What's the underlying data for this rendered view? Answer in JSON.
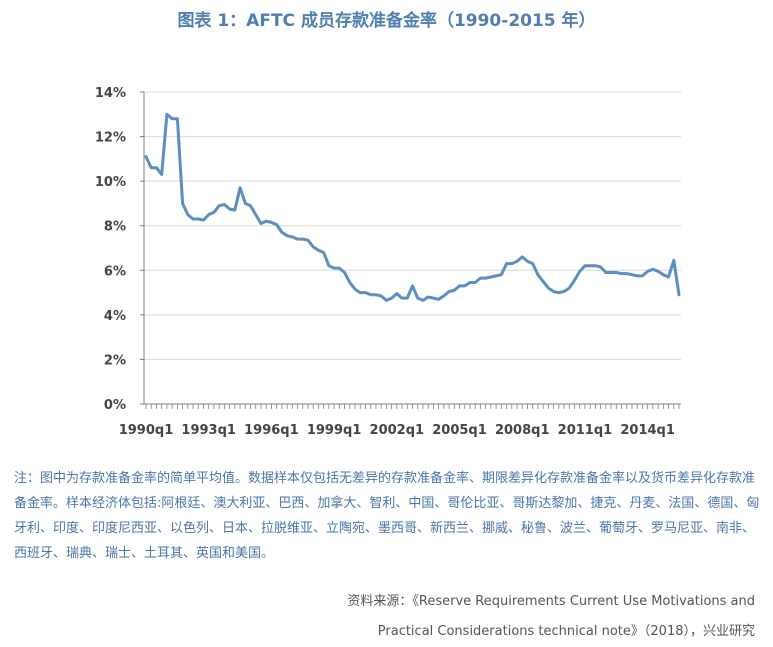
{
  "title": "图表 1：AFTC 成员存款准备金率（1990-2015 年）",
  "note": "注：图中为存款准备金率的简单平均值。数据样本仅包括无差异的存款准备金率、期限差异化存款准备金率以及货币差异化存款准备金率。样本经济体包括:阿根廷、澳大利亚、巴西、加拿大、智利、中国、哥伦比亚、哥斯达黎加、捷克、丹麦、法国、德国、匈牙利、印度、印度尼西亚、以色列、日本、拉脱维亚、立陶宛、墨西哥、新西兰、挪威、秘鲁、波兰、葡萄牙、罗马尼亚、南非、西班牙、瑞典、瑞士、土耳其、英国和美国。",
  "source": {
    "line1": "资料来源：《Reserve Requirements Current Use Motivations and",
    "line2": "Practical Considerations technical note》（2018），兴业研究"
  },
  "colors": {
    "line": "#5b8ec1",
    "title": "#4f7fb0",
    "grid": "#d9d9d9",
    "axis": "#7f7f7f"
  },
  "chart_data": {
    "type": "line",
    "title": "图表 1：AFTC 成员存款准备金率（1990-2015 年）",
    "xlabel": "",
    "ylabel": "",
    "ylim": [
      0,
      14
    ],
    "yticks": [
      "0%",
      "2%",
      "4%",
      "6%",
      "8%",
      "10%",
      "12%",
      "14%"
    ],
    "xtick_labels": [
      "1990q1",
      "1993q1",
      "1996q1",
      "1999q1",
      "2002q1",
      "2005q1",
      "2008q1",
      "2011q1",
      "2014q1"
    ],
    "grid": true,
    "x_start": "1990q1",
    "x_end": "2015q4",
    "series": [
      {
        "values": [
          11.1,
          10.6,
          10.6,
          10.3,
          13.0,
          12.8,
          12.8,
          9.0,
          8.5,
          8.3,
          8.3,
          8.25,
          8.5,
          8.6,
          8.9,
          8.95,
          8.75,
          8.7,
          9.7,
          9.0,
          8.9,
          8.5,
          8.1,
          8.2,
          8.15,
          8.05,
          7.7,
          7.55,
          7.5,
          7.4,
          7.4,
          7.35,
          7.05,
          6.9,
          6.8,
          6.2,
          6.1,
          6.1,
          5.9,
          5.45,
          5.15,
          5.0,
          5.0,
          4.9,
          4.9,
          4.85,
          4.65,
          4.75,
          4.95,
          4.75,
          4.75,
          5.3,
          4.75,
          4.65,
          4.8,
          4.75,
          4.7,
          4.85,
          5.05,
          5.1,
          5.3,
          5.3,
          5.45,
          5.45,
          5.65,
          5.65,
          5.7,
          5.75,
          5.8,
          6.3,
          6.3,
          6.4,
          6.6,
          6.4,
          6.3,
          5.8,
          5.5,
          5.2,
          5.05,
          5.0,
          5.05,
          5.2,
          5.55,
          5.95,
          6.2,
          6.2,
          6.2,
          6.15,
          5.9,
          5.9,
          5.9,
          5.85,
          5.85,
          5.8,
          5.75,
          5.75,
          5.95,
          6.05,
          5.95,
          5.8,
          5.7,
          6.45,
          4.9
        ]
      }
    ]
  }
}
